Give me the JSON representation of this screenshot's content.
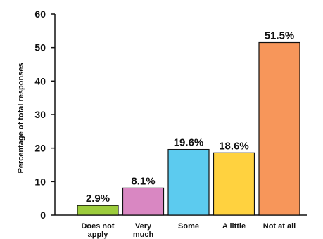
{
  "chart_data": {
    "type": "bar",
    "ylabel": "Percentage of total responses",
    "xlabel": "",
    "ylim": [
      0,
      60
    ],
    "yticks": [
      0,
      10,
      20,
      30,
      40,
      50,
      60
    ],
    "grid": false,
    "categories": [
      [
        "Does not",
        "apply"
      ],
      [
        "Very",
        "much"
      ],
      [
        "Some"
      ],
      [
        "A little"
      ],
      [
        "Not at all"
      ]
    ],
    "values": [
      2.9,
      8.1,
      19.6,
      18.6,
      51.5
    ],
    "data_labels": [
      "2.9%",
      "8.1%",
      "19.6%",
      "18.6%",
      "51.5%"
    ],
    "colors": [
      "#9ccc3c",
      "#d987c2",
      "#5ccbef",
      "#ffd23f",
      "#f7965a"
    ]
  }
}
